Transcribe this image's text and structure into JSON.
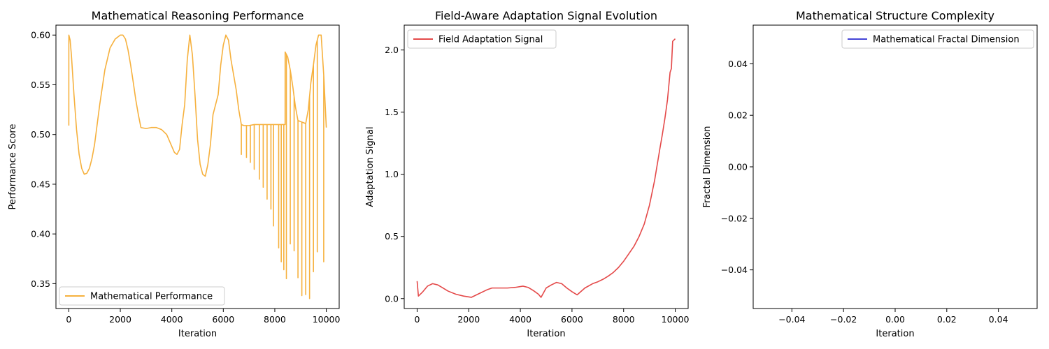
{
  "chart_data": [
    {
      "type": "line",
      "title": "Mathematical Reasoning Performance",
      "xlabel": "Iteration",
      "ylabel": "Performance Score",
      "xlim": [
        -500,
        10500
      ],
      "ylim": [
        0.325,
        0.61
      ],
      "xticks": [
        0,
        2000,
        4000,
        6000,
        8000,
        10000
      ],
      "yticks": [
        0.35,
        0.4,
        0.45,
        0.5,
        0.55,
        0.6
      ],
      "ytick_labels": [
        "0.35",
        "0.40",
        "0.45",
        "0.50",
        "0.55",
        "0.60"
      ],
      "legend": {
        "placement": "lower-left"
      },
      "grid": false,
      "series": [
        {
          "name": "Mathematical Performance",
          "color": "#f5a623",
          "x": [
            0,
            1,
            50,
            100,
            200,
            300,
            400,
            500,
            600,
            700,
            800,
            900,
            1000,
            1200,
            1400,
            1600,
            1800,
            2000,
            2100,
            2200,
            2300,
            2400,
            2500,
            2600,
            2700,
            2800,
            3000,
            3200,
            3400,
            3600,
            3800,
            4000,
            4100,
            4200,
            4300,
            4400,
            4500,
            4600,
            4700,
            4800,
            4900,
            5000,
            5100,
            5200,
            5300,
            5400,
            5500,
            5600,
            5700,
            5800,
            5900,
            6000,
            6100,
            6200,
            6300,
            6400,
            6500,
            6600,
            6700,
            6800,
            7000,
            7200,
            7400,
            7600,
            7800,
            8000,
            8200,
            8400,
            8401,
            8500,
            8600,
            8700,
            8800,
            8900,
            9000,
            9100,
            9200,
            9300,
            9400,
            9500,
            9600,
            9700,
            9800,
            9900,
            10000
          ],
          "y": [
            0.509,
            0.6,
            0.595,
            0.58,
            0.54,
            0.505,
            0.48,
            0.466,
            0.46,
            0.461,
            0.466,
            0.476,
            0.49,
            0.53,
            0.565,
            0.587,
            0.596,
            0.6,
            0.6,
            0.596,
            0.585,
            0.57,
            0.553,
            0.535,
            0.52,
            0.507,
            0.506,
            0.507,
            0.507,
            0.505,
            0.5,
            0.488,
            0.482,
            0.48,
            0.485,
            0.51,
            0.53,
            0.575,
            0.6,
            0.58,
            0.54,
            0.495,
            0.47,
            0.46,
            0.458,
            0.47,
            0.49,
            0.52,
            0.53,
            0.54,
            0.57,
            0.59,
            0.6,
            0.595,
            0.575,
            0.56,
            0.545,
            0.525,
            0.51,
            0.509,
            0.509,
            0.51,
            0.51,
            0.51,
            0.51,
            0.51,
            0.51,
            0.51,
            0.583,
            0.578,
            0.565,
            0.548,
            0.528,
            0.514,
            0.513,
            0.512,
            0.511,
            0.525,
            0.552,
            0.57,
            0.59,
            0.6,
            0.6,
            0.56,
            0.507
          ],
          "dips": [
            [
              6700,
              0.48
            ],
            [
              6900,
              0.477
            ],
            [
              7050,
              0.472
            ],
            [
              7200,
              0.465
            ],
            [
              7400,
              0.455
            ],
            [
              7550,
              0.447
            ],
            [
              7700,
              0.435
            ],
            [
              7850,
              0.425
            ],
            [
              7950,
              0.408
            ],
            [
              8150,
              0.386
            ],
            [
              8250,
              0.372
            ],
            [
              8350,
              0.364
            ],
            [
              8450,
              0.355
            ],
            [
              8600,
              0.39
            ],
            [
              8750,
              0.383
            ],
            [
              8900,
              0.356
            ],
            [
              9050,
              0.338
            ],
            [
              9200,
              0.339
            ],
            [
              9350,
              0.335
            ],
            [
              9500,
              0.362
            ],
            [
              9650,
              0.382
            ],
            [
              9900,
              0.372
            ]
          ]
        }
      ]
    },
    {
      "type": "line",
      "title": "Field-Aware Adaptation Signal Evolution",
      "xlabel": "Iteration",
      "ylabel": "Adaptation Signal",
      "xlim": [
        -500,
        10500
      ],
      "ylim": [
        -0.08,
        2.2
      ],
      "xticks": [
        0,
        2000,
        4000,
        6000,
        8000,
        10000
      ],
      "yticks": [
        0.0,
        0.5,
        1.0,
        1.5,
        2.0
      ],
      "ytick_labels": [
        "0.0",
        "0.5",
        "1.0",
        "1.5",
        "2.0"
      ],
      "legend": {
        "placement": "upper-left"
      },
      "grid": false,
      "series": [
        {
          "name": "Field Adaptation Signal",
          "color": "#e03030",
          "x": [
            0,
            50,
            200,
            400,
            600,
            800,
            1000,
            1200,
            1500,
            1800,
            2100,
            2400,
            2700,
            2900,
            3200,
            3500,
            3800,
            4100,
            4300,
            4500,
            4700,
            4800,
            5000,
            5200,
            5400,
            5600,
            5800,
            6000,
            6200,
            6500,
            6800,
            7000,
            7200,
            7400,
            7600,
            7800,
            8000,
            8200,
            8400,
            8600,
            8800,
            9000,
            9200,
            9400,
            9500,
            9600,
            9700,
            9800,
            9850,
            9900,
            10000
          ],
          "y": [
            0.14,
            0.02,
            0.05,
            0.1,
            0.12,
            0.11,
            0.085,
            0.06,
            0.035,
            0.02,
            0.01,
            0.04,
            0.07,
            0.085,
            0.085,
            0.085,
            0.09,
            0.1,
            0.09,
            0.065,
            0.035,
            0.01,
            0.085,
            0.11,
            0.13,
            0.12,
            0.085,
            0.055,
            0.03,
            0.085,
            0.12,
            0.135,
            0.155,
            0.18,
            0.21,
            0.25,
            0.3,
            0.36,
            0.42,
            0.5,
            0.6,
            0.75,
            0.95,
            1.2,
            1.32,
            1.45,
            1.6,
            1.82,
            1.85,
            2.07,
            2.09
          ]
        }
      ]
    },
    {
      "type": "line",
      "title": "Mathematical Structure Complexity",
      "xlabel": "Iteration",
      "ylabel": "Fractal Dimension",
      "xlim": [
        -0.055,
        0.055
      ],
      "ylim": [
        -0.055,
        0.055
      ],
      "xticks": [
        -0.04,
        -0.02,
        0.0,
        0.02,
        0.04
      ],
      "xtick_labels": [
        "−0.04",
        "−0.02",
        "0.00",
        "0.02",
        "0.04"
      ],
      "yticks": [
        -0.04,
        -0.02,
        0.0,
        0.02,
        0.04
      ],
      "ytick_labels": [
        "−0.04",
        "−0.02",
        "0.00",
        "0.02",
        "0.04"
      ],
      "legend": {
        "placement": "upper-right"
      },
      "grid": false,
      "series": [
        {
          "name": "Mathematical Fractal Dimension",
          "color": "#2a2ad0",
          "x": [],
          "y": []
        }
      ]
    }
  ]
}
